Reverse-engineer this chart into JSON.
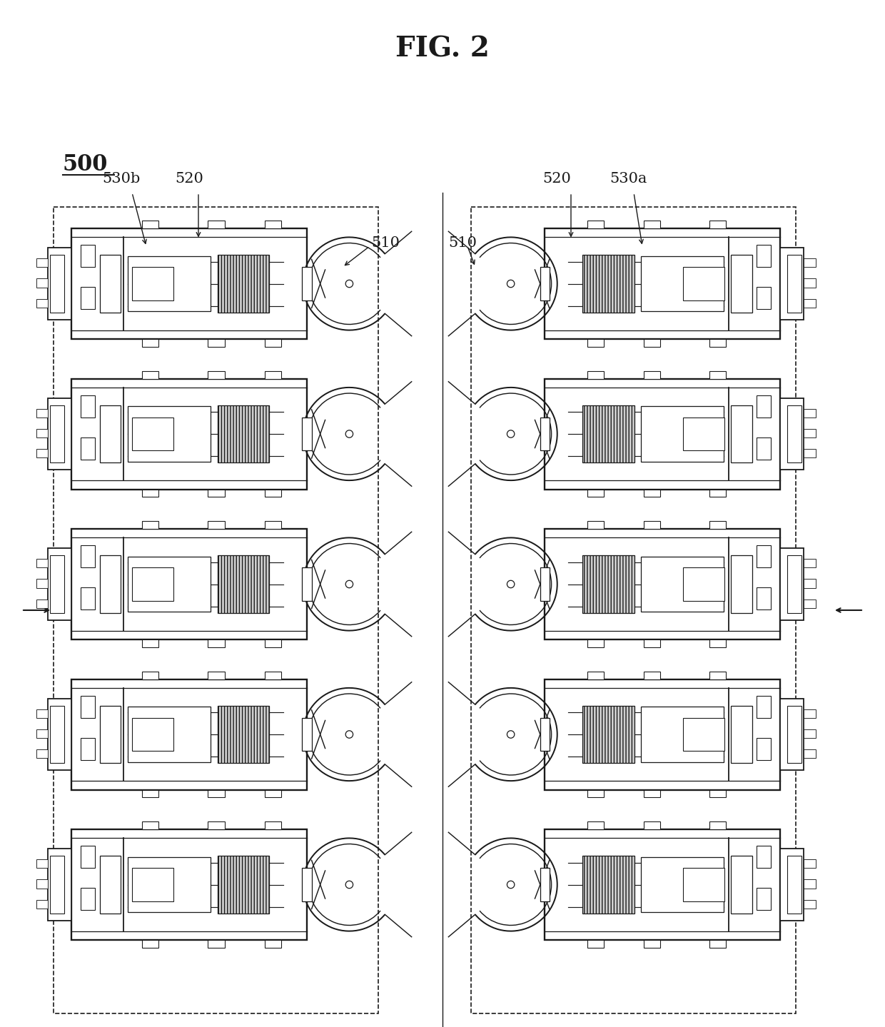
{
  "title": "FIG. 2",
  "label_500": "500",
  "label_510": "510",
  "label_520": "520",
  "label_530a": "530a",
  "label_530b": "530b",
  "bg_color": "#ffffff",
  "line_color": "#1a1a1a",
  "num_rows": 5,
  "title_fontsize": 28,
  "label_fontsize": 15,
  "large_label_fontsize": 22
}
